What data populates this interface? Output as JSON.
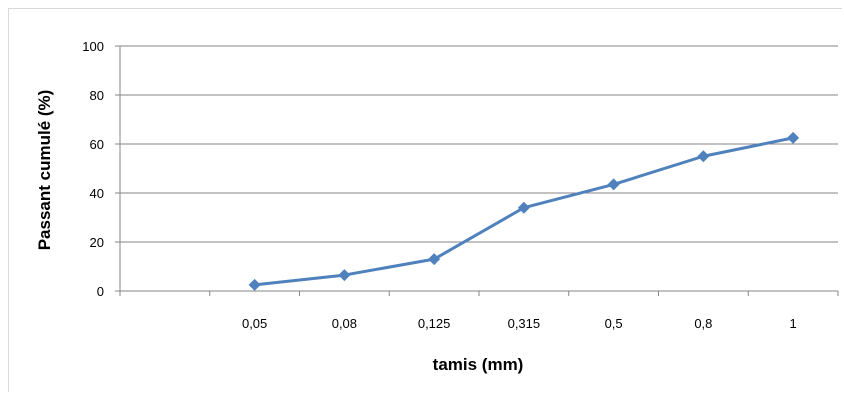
{
  "chart_data": {
    "type": "line",
    "title": "",
    "xlabel": "tamis (mm)",
    "ylabel": "Passant cumulé (%)",
    "categories": [
      "",
      "0,05",
      "0,08",
      "0,125",
      "0,315",
      "0,5",
      "0,8",
      "1"
    ],
    "yticks": [
      "0",
      "20",
      "40",
      "60",
      "80",
      "100"
    ],
    "ylim": [
      0,
      100
    ],
    "grid": "horizontal",
    "legend": "none",
    "series": [
      {
        "values": [
          null,
          2.5,
          6.5,
          13,
          34,
          43.5,
          55,
          62.5
        ],
        "color": "#4F81BD",
        "marker": "diamond"
      }
    ]
  }
}
